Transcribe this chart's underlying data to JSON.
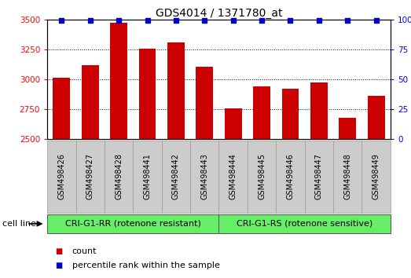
{
  "title": "GDS4014 / 1371780_at",
  "categories": [
    "GSM498426",
    "GSM498427",
    "GSM498428",
    "GSM498441",
    "GSM498442",
    "GSM498443",
    "GSM498444",
    "GSM498445",
    "GSM498446",
    "GSM498447",
    "GSM498448",
    "GSM498449"
  ],
  "bar_values": [
    3010,
    3120,
    3470,
    3255,
    3310,
    3105,
    2755,
    2940,
    2920,
    2970,
    2680,
    2860
  ],
  "percentile_value": 99,
  "bar_color": "#cc0000",
  "percentile_color": "#0000cc",
  "ylim_left": [
    2500,
    3500
  ],
  "ylim_right": [
    0,
    100
  ],
  "yticks_left": [
    2500,
    2750,
    3000,
    3250,
    3500
  ],
  "yticks_right": [
    0,
    25,
    50,
    75,
    100
  ],
  "group1_label": "CRI-G1-RR (rotenone resistant)",
  "group2_label": "CRI-G1-RS (rotenone sensitive)",
  "group1_count": 6,
  "group2_count": 6,
  "cell_line_label": "cell line",
  "legend1_label": "count",
  "legend2_label": "percentile rank within the sample",
  "group_bg_color": "#66ee66",
  "tick_bg_color": "#cccccc",
  "background_color": "#ffffff",
  "grid_color": "#000000",
  "title_fontsize": 10,
  "bar_width": 0.6,
  "label_fontsize": 7,
  "group_fontsize": 8,
  "legend_fontsize": 8
}
